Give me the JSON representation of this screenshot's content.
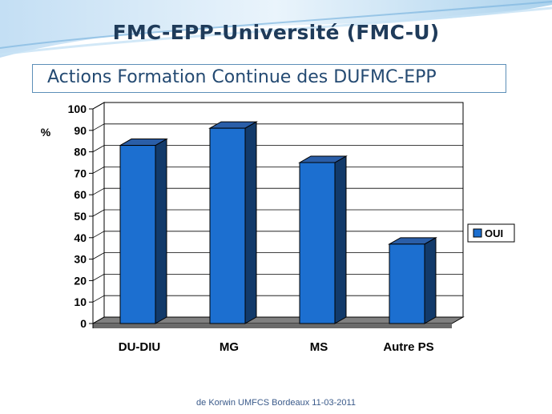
{
  "slide": {
    "title": "FMC-EPP-Université (FMC-U)",
    "subtitle": "Actions Formation Continue des DUFMC-EPP",
    "footer": "de Korwin UMFCS Bordeaux 11-03-2011"
  },
  "colors": {
    "bar_front": "#1c6fd0",
    "bar_side": "#123a6a",
    "bar_top": "#2a5ea8",
    "floor": "#808080",
    "title": "#1f3b5a",
    "subtitle": "#244a72"
  },
  "chart_data": {
    "type": "bar",
    "categories": [
      "DU-DIU",
      "MG",
      "MS",
      "Autre PS"
    ],
    "series": [
      {
        "name": "OUI",
        "values": [
          83,
          91,
          75,
          37
        ]
      }
    ],
    "ylabel": "%",
    "ylim": [
      0,
      100
    ],
    "yticks": [
      0,
      10,
      20,
      30,
      40,
      50,
      60,
      70,
      80,
      90,
      100
    ],
    "grid": true,
    "legend": "right",
    "three_d": true
  }
}
